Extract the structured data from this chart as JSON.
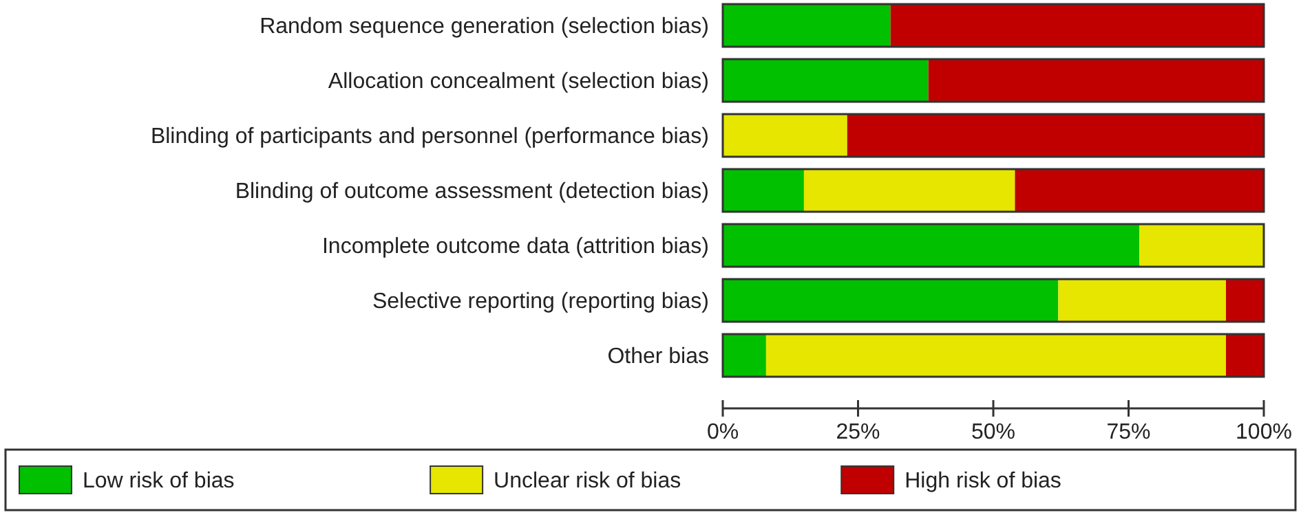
{
  "chart_data": {
    "type": "bar",
    "orientation": "horizontal",
    "stacked": true,
    "categories": [
      "Random sequence generation (selection bias)",
      "Allocation concealment (selection bias)",
      "Blinding of participants and personnel (performance bias)",
      "Blinding of outcome assessment (detection bias)",
      "Incomplete outcome data (attrition bias)",
      "Selective reporting (reporting bias)",
      "Other bias"
    ],
    "series": [
      {
        "name": "Low risk of bias",
        "color": "#00c000",
        "values": [
          31,
          38,
          0,
          15,
          77,
          62,
          8
        ]
      },
      {
        "name": "Unclear risk of bias",
        "color": "#e6e600",
        "values": [
          0,
          0,
          23,
          39,
          23,
          31,
          85
        ]
      },
      {
        "name": "High risk of bias",
        "color": "#c00000",
        "values": [
          69,
          62,
          77,
          46,
          0,
          7,
          7
        ]
      }
    ],
    "xlim": [
      0,
      100
    ],
    "xticks": [
      {
        "value": 0,
        "label": "0%"
      },
      {
        "value": 25,
        "label": "25%"
      },
      {
        "value": 50,
        "label": "50%"
      },
      {
        "value": 75,
        "label": "75%"
      },
      {
        "value": 100,
        "label": "100%"
      }
    ],
    "grid": false,
    "legend": "bottom"
  }
}
